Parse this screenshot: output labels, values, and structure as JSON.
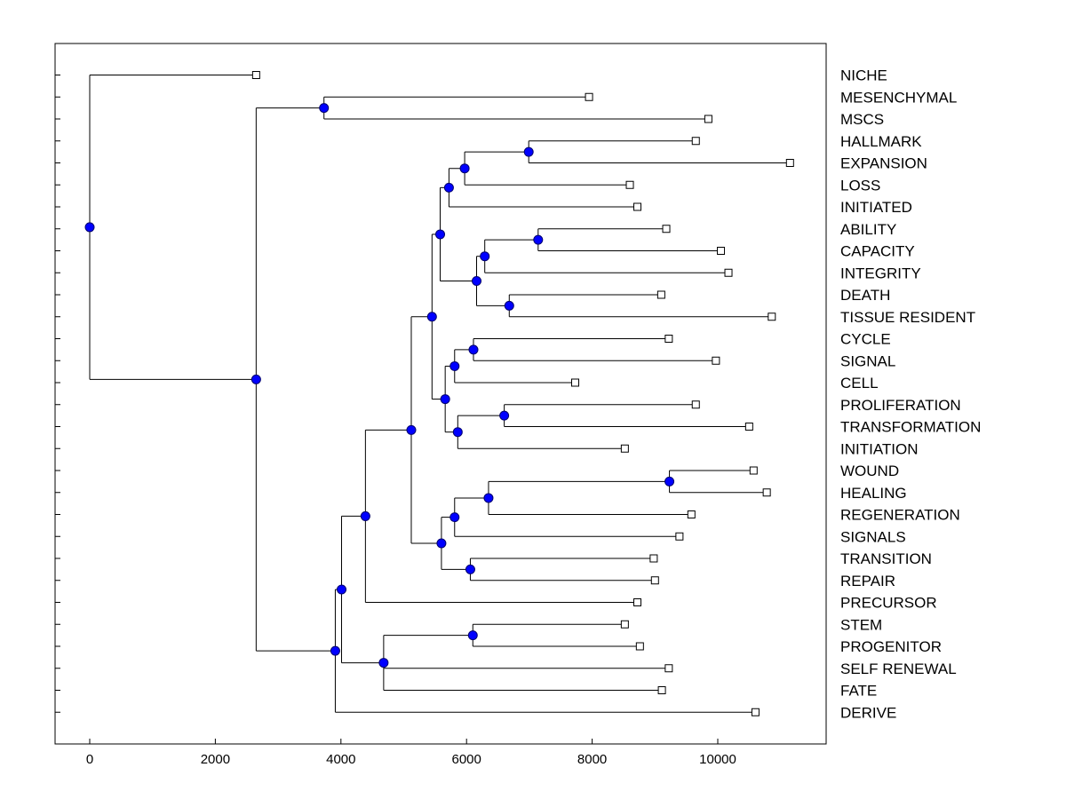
{
  "chart_data": {
    "type": "dendrogram",
    "orientation": "horizontal",
    "x_axis": {
      "range": [
        -560,
        11720
      ],
      "ticks": [
        0,
        2000,
        4000,
        6000,
        8000,
        10000
      ],
      "tick_labels": [
        "0",
        "2000",
        "4000",
        "6000",
        "8000",
        "10000"
      ]
    },
    "leaves": [
      {
        "id": "L0",
        "label": "NICHE",
        "x": 2650
      },
      {
        "id": "L1",
        "label": "MESENCHYMAL",
        "x": 7950
      },
      {
        "id": "L2",
        "label": "MSCS",
        "x": 9850
      },
      {
        "id": "L3",
        "label": "HALLMARK",
        "x": 9650
      },
      {
        "id": "L4",
        "label": "EXPANSION",
        "x": 11150
      },
      {
        "id": "L5",
        "label": "LOSS",
        "x": 8600
      },
      {
        "id": "L6",
        "label": "INITIATED",
        "x": 8720
      },
      {
        "id": "L7",
        "label": "ABILITY",
        "x": 9180
      },
      {
        "id": "L8",
        "label": "CAPACITY",
        "x": 10050
      },
      {
        "id": "L9",
        "label": "INTEGRITY",
        "x": 10170
      },
      {
        "id": "L10",
        "label": "DEATH",
        "x": 9100
      },
      {
        "id": "L11",
        "label": "TISSUE RESIDENT",
        "x": 10860
      },
      {
        "id": "L12",
        "label": "CYCLE",
        "x": 9220
      },
      {
        "id": "L13",
        "label": "SIGNAL",
        "x": 9970
      },
      {
        "id": "L14",
        "label": "CELL",
        "x": 7730
      },
      {
        "id": "L15",
        "label": "PROLIFERATION",
        "x": 9650
      },
      {
        "id": "L16",
        "label": "TRANSFORMATION",
        "x": 10500
      },
      {
        "id": "L17",
        "label": "INITIATION",
        "x": 8520
      },
      {
        "id": "L18",
        "label": "WOUND",
        "x": 10570
      },
      {
        "id": "L19",
        "label": "HEALING",
        "x": 10780
      },
      {
        "id": "L20",
        "label": "REGENERATION",
        "x": 9580
      },
      {
        "id": "L21",
        "label": "SIGNALS",
        "x": 9390
      },
      {
        "id": "L22",
        "label": "TRANSITION",
        "x": 8980
      },
      {
        "id": "L23",
        "label": "REPAIR",
        "x": 9000
      },
      {
        "id": "L24",
        "label": "PRECURSOR",
        "x": 8720
      },
      {
        "id": "L25",
        "label": "STEM",
        "x": 8520
      },
      {
        "id": "L26",
        "label": "PROGENITOR",
        "x": 8760
      },
      {
        "id": "L27",
        "label": "SELF RENEWAL",
        "x": 9220
      },
      {
        "id": "L28",
        "label": "FATE",
        "x": 9110
      },
      {
        "id": "L29",
        "label": "DERIVE",
        "x": 10600
      }
    ],
    "merges": [
      {
        "id": "N1",
        "x": 0,
        "children": [
          "L0",
          "N2"
        ]
      },
      {
        "id": "N2",
        "x": 2650,
        "children": [
          "N3",
          "N4"
        ]
      },
      {
        "id": "N3",
        "x": 3730,
        "children": [
          "L1",
          "L2"
        ]
      },
      {
        "id": "N4",
        "x": 3910,
        "children": [
          "N5",
          "L29"
        ]
      },
      {
        "id": "N5",
        "x": 4010,
        "children": [
          "N6",
          "N28"
        ]
      },
      {
        "id": "N6",
        "x": 4390,
        "children": [
          "N7",
          "L24"
        ]
      },
      {
        "id": "N7",
        "x": 5120,
        "children": [
          "N8",
          "N23"
        ]
      },
      {
        "id": "N8",
        "x": 5450,
        "children": [
          "N9",
          "N16"
        ]
      },
      {
        "id": "N9",
        "x": 5580,
        "children": [
          "N10",
          "N13"
        ]
      },
      {
        "id": "N10",
        "x": 5720,
        "children": [
          "N11",
          "L6"
        ]
      },
      {
        "id": "N11",
        "x": 5970,
        "children": [
          "N12",
          "L5"
        ]
      },
      {
        "id": "N12",
        "x": 6990,
        "children": [
          "L3",
          "L4"
        ]
      },
      {
        "id": "N13",
        "x": 6160,
        "children": [
          "N14",
          "N15"
        ]
      },
      {
        "id": "N14",
        "x": 6290,
        "children": [
          "N14a",
          "L9"
        ]
      },
      {
        "id": "N14a",
        "x": 7140,
        "children": [
          "L7",
          "L8"
        ]
      },
      {
        "id": "N15",
        "x": 6680,
        "children": [
          "L10",
          "L11"
        ]
      },
      {
        "id": "N16",
        "x": 5660,
        "children": [
          "N17",
          "N19"
        ]
      },
      {
        "id": "N17",
        "x": 5810,
        "children": [
          "N18",
          "L14"
        ]
      },
      {
        "id": "N18",
        "x": 6110,
        "children": [
          "L12",
          "L13"
        ]
      },
      {
        "id": "N19",
        "x": 5860,
        "children": [
          "N20",
          "L17"
        ]
      },
      {
        "id": "N20",
        "x": 6600,
        "children": [
          "L15",
          "L16"
        ]
      },
      {
        "id": "N23",
        "x": 5600,
        "children": [
          "N24",
          "N27"
        ]
      },
      {
        "id": "N24",
        "x": 5810,
        "children": [
          "N25",
          "L21"
        ]
      },
      {
        "id": "N25",
        "x": 6350,
        "children": [
          "N26",
          "L20"
        ]
      },
      {
        "id": "N26",
        "x": 9230,
        "children": [
          "L18",
          "L19"
        ]
      },
      {
        "id": "N27",
        "x": 6060,
        "children": [
          "L22",
          "L23"
        ]
      },
      {
        "id": "N28",
        "x": 4680,
        "children": [
          "N29",
          "L27",
          "L28"
        ]
      },
      {
        "id": "N29",
        "x": 6100,
        "children": [
          "L25",
          "L26"
        ]
      }
    ],
    "colors": {
      "node_fill": "#0000ff",
      "node_stroke": "#00006e",
      "line": "#000000",
      "leaf_fill": "#ffffff"
    }
  }
}
